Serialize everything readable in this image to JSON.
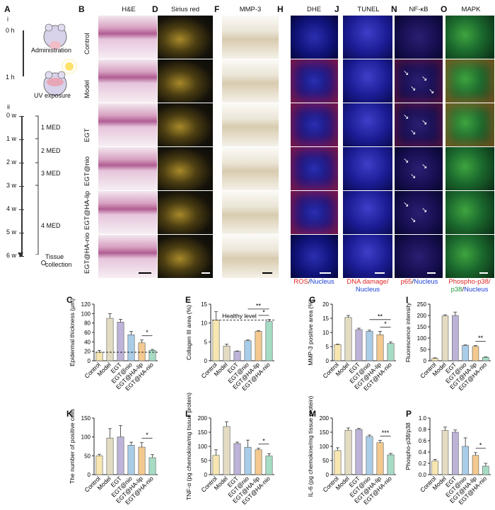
{
  "panel_letters": {
    "A": "A",
    "B": "B",
    "C": "C",
    "D": "D",
    "E": "E",
    "F": "F",
    "G": "G",
    "H": "H",
    "I": "I",
    "J": "J",
    "K": "K",
    "L": "L",
    "M": "M",
    "N": "N",
    "O": "O",
    "P": "P"
  },
  "timeline": {
    "sub_i": "i",
    "sub_ii": "ii",
    "t0h": "0 h",
    "t1h": "1 h",
    "administration": "Administration",
    "uv": "UV exposure",
    "weeks": [
      "0 w",
      "1 w",
      "2 w",
      "3 w",
      "4 w",
      "5 w",
      "6 w"
    ],
    "med": [
      "1 MED",
      "2 MED",
      "3 MED",
      "4 MED"
    ],
    "collection_line1": "Tissue",
    "collection_line2": "collection"
  },
  "column_titles": {
    "he": "H&E",
    "sirius": "Sirius red",
    "mmp3": "MMP-3",
    "dhe": "DHE",
    "tunel": "TUNEL",
    "nfkb": "NF-κB",
    "mapk": "MAPK"
  },
  "row_labels": [
    "Control",
    "Model",
    "EGT",
    "EGT@nio",
    "EGT@HA-lip",
    "EGT@HA-nio"
  ],
  "stain_captions": {
    "dhe_red": "ROS",
    "dhe_sep": "/",
    "dhe_blue": "Nucleus",
    "tunel_red": "DNA damage/",
    "tunel_blue": "Nucleus",
    "nfkb_red": "p65",
    "nfkb_sep": "/",
    "nfkb_blue": "Nucleus",
    "mapk_red": "Phospho-p38/",
    "mapk_green": "p38",
    "mapk_sep": "/",
    "mapk_blue": "Nucleus"
  },
  "colors": {
    "bar_fills": [
      "#f7e6b0",
      "#e3dcc2",
      "#bdb3d8",
      "#a9cde8",
      "#f3c98f",
      "#a6dcc4"
    ],
    "bar_stroke": "#5a5a5a"
  },
  "chart_data": [
    {
      "id": "C",
      "type": "bar",
      "ylabel": "Epidermal thickness (μm)",
      "ylim": [
        0,
        120
      ],
      "yticks": [
        0,
        20,
        40,
        60,
        80,
        100,
        120
      ],
      "categories": [
        "Control",
        "Model",
        "EGT",
        "EGT@nio",
        "EGT@HA-lip",
        "EGT@HA-nio"
      ],
      "values": [
        18,
        90,
        82,
        55,
        38,
        22
      ],
      "errors": [
        4,
        10,
        6,
        7,
        6,
        2
      ],
      "reference_line": 18,
      "sig": [
        {
          "from": 4,
          "to": 5,
          "label": "*"
        }
      ]
    },
    {
      "id": "E",
      "type": "bar",
      "ylabel": "Collagen III area (%)",
      "ylim": [
        0,
        15
      ],
      "yticks": [
        0,
        5,
        10,
        15
      ],
      "categories": [
        "Control",
        "Model",
        "EGT",
        "EGT@nio",
        "EGT@HA-lip",
        "EGT@HA-nio"
      ],
      "values": [
        10.8,
        3.9,
        2.5,
        5.3,
        7.8,
        10.4
      ],
      "errors": [
        2.2,
        0.5,
        0.1,
        0.2,
        0.2,
        0.5
      ],
      "reference_line": 10.8,
      "reference_label": "Healthy level",
      "sig": [
        {
          "from": 3,
          "to": 5,
          "label": "**"
        },
        {
          "from": 4,
          "to": 5,
          "label": "*"
        }
      ]
    },
    {
      "id": "G",
      "type": "bar",
      "ylabel": "MMP-3 positive area (%)",
      "ylim": [
        0,
        20
      ],
      "yticks": [
        0,
        5,
        10,
        15,
        20
      ],
      "categories": [
        "Control",
        "Model",
        "EGT",
        "EGT@nio",
        "EGT@HA-lip",
        "EGT@HA-nio"
      ],
      "values": [
        5.7,
        15.3,
        11.0,
        10.4,
        9.2,
        6.1
      ],
      "errors": [
        0.2,
        0.7,
        0.5,
        0.4,
        1.2,
        0.5
      ],
      "sig": [
        {
          "from": 3,
          "to": 5,
          "label": "**"
        },
        {
          "from": 4,
          "to": 5,
          "label": "*"
        }
      ]
    },
    {
      "id": "I",
      "type": "bar",
      "ylabel": "Fluorescence intensity",
      "ylim": [
        0,
        250
      ],
      "yticks": [
        0,
        50,
        100,
        150,
        200,
        250
      ],
      "categories": [
        "Control",
        "Model",
        "EGT",
        "EGT@nio",
        "EGT@HA-lip",
        "EGT@HA-nio"
      ],
      "values": [
        10,
        198,
        200,
        68,
        63,
        15
      ],
      "errors": [
        3,
        5,
        15,
        2,
        4,
        2
      ],
      "sig": [
        {
          "from": 4,
          "to": 5,
          "label": "**"
        }
      ]
    },
    {
      "id": "K",
      "type": "bar",
      "ylabel": "The number of positive cells",
      "ylim": [
        0,
        150
      ],
      "yticks": [
        0,
        50,
        100,
        150
      ],
      "categories": [
        "Control",
        "Model",
        "EGT",
        "EGT@nio",
        "EGT@HA-lip",
        "EGT@HA-nio"
      ],
      "values": [
        50,
        97,
        100,
        78,
        73,
        45
      ],
      "errors": [
        4,
        25,
        30,
        8,
        12,
        8
      ],
      "sig": [
        {
          "from": 4,
          "to": 5,
          "label": "*"
        }
      ]
    },
    {
      "id": "L",
      "type": "bar",
      "ylabel": "TNF-α (pg chemokine/mg tissue protein)",
      "ylim": [
        0,
        200
      ],
      "yticks": [
        0,
        50,
        100,
        150,
        200
      ],
      "categories": [
        "Control",
        "Model",
        "EGT",
        "EGT@nio",
        "EGT@HA-lip",
        "EGT@HA-nio"
      ],
      "values": [
        68,
        170,
        110,
        97,
        88,
        66
      ],
      "errors": [
        20,
        17,
        5,
        25,
        5,
        8
      ],
      "sig": [
        {
          "from": 4,
          "to": 5,
          "label": "*"
        }
      ]
    },
    {
      "id": "M",
      "type": "bar",
      "ylabel": "IL-6 (pg chemokine/mg tissue protein)",
      "ylim": [
        0,
        200
      ],
      "yticks": [
        0,
        50,
        100,
        150,
        200
      ],
      "categories": [
        "Control",
        "Model",
        "EGT",
        "EGT@nio",
        "EGT@HA-lip",
        "EGT@HA-nio"
      ],
      "values": [
        85,
        157,
        160,
        135,
        113,
        70
      ],
      "errors": [
        10,
        8,
        3,
        5,
        8,
        5
      ],
      "sig": [
        {
          "from": 4,
          "to": 5,
          "label": "***"
        }
      ]
    },
    {
      "id": "P",
      "type": "bar",
      "ylabel": "Phospho-p38/p38",
      "ylim": [
        0,
        1.0
      ],
      "yticks": [
        0.0,
        0.2,
        0.4,
        0.6,
        0.8,
        1.0
      ],
      "categories": [
        "Control",
        "Model",
        "EGT",
        "EGT@nio",
        "EGT@HA-lip",
        "EGT@HA-nio"
      ],
      "values": [
        0.24,
        0.78,
        0.75,
        0.5,
        0.34,
        0.15
      ],
      "errors": [
        0.03,
        0.06,
        0.04,
        0.15,
        0.05,
        0.05
      ],
      "sig": [
        {
          "from": 4,
          "to": 5,
          "label": "*"
        }
      ]
    }
  ]
}
